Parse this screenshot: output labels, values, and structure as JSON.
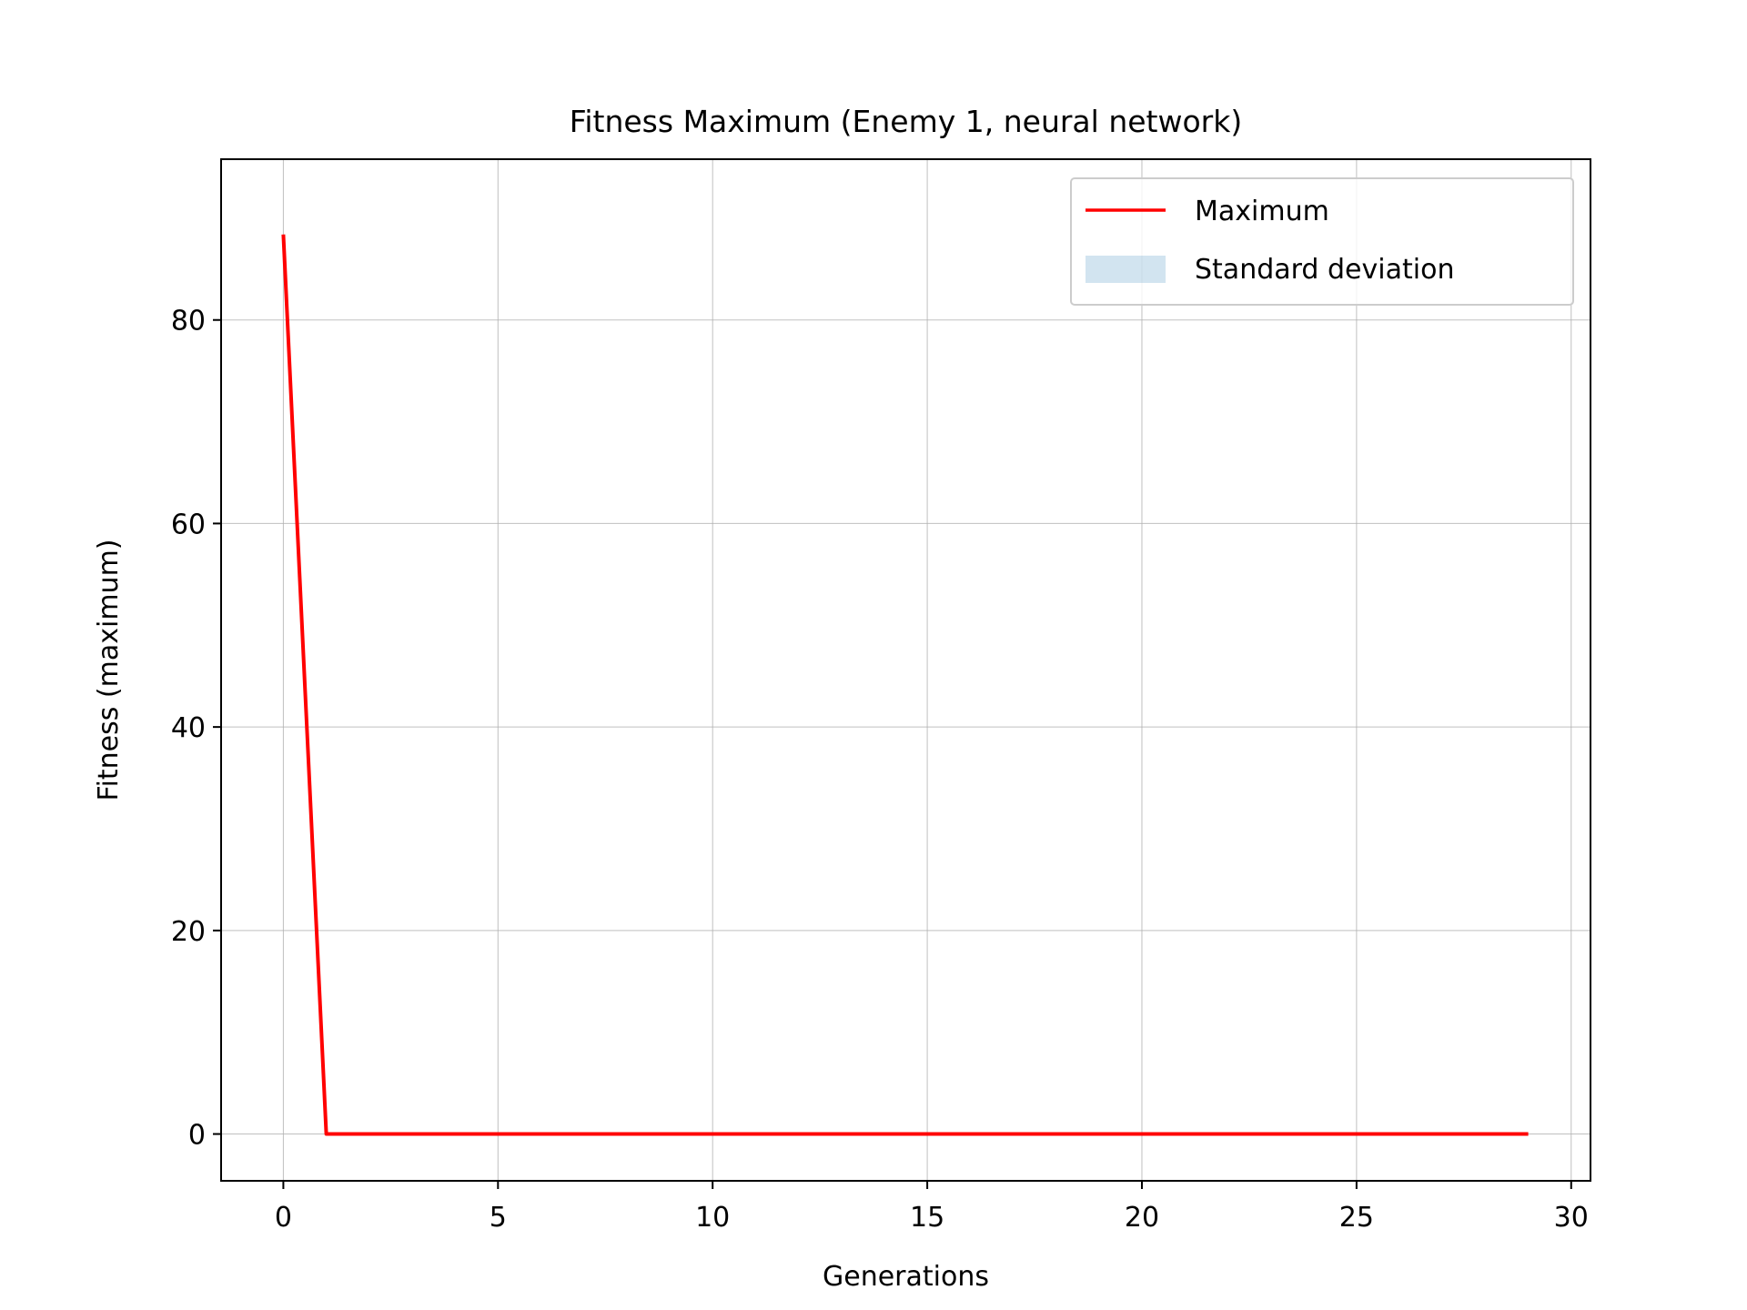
{
  "chart_data": {
    "type": "line",
    "title": "Fitness Maximum (Enemy 1, neural network)",
    "xlabel": "Generations",
    "ylabel": "Fitness (maximum)",
    "xlim": [
      -1.45,
      30.45
    ],
    "ylim": [
      -4.6,
      95.8
    ],
    "xticks": [
      0,
      5,
      10,
      15,
      20,
      25,
      30
    ],
    "yticks": [
      0,
      20,
      40,
      60,
      80
    ],
    "grid": true,
    "legend_position": "top-right",
    "series": [
      {
        "name": "Maximum",
        "color": "#ff0000",
        "x": [
          0,
          1,
          2,
          3,
          4,
          5,
          6,
          7,
          8,
          9,
          10,
          11,
          12,
          13,
          14,
          15,
          16,
          17,
          18,
          19,
          20,
          21,
          22,
          23,
          24,
          25,
          26,
          27,
          28,
          29
        ],
        "values": [
          88.4,
          0,
          0,
          0,
          0,
          0,
          0,
          0,
          0,
          0,
          0,
          0,
          0,
          0,
          0,
          0,
          0,
          0,
          0,
          0,
          0,
          0,
          0,
          0,
          0,
          0,
          0,
          0,
          0,
          0
        ]
      }
    ],
    "band": {
      "name": "Standard deviation",
      "color": "#1f77b4",
      "opacity": 0.2,
      "x": [
        0,
        1,
        2,
        3,
        4,
        5,
        6,
        7,
        8,
        9,
        10,
        11,
        12,
        13,
        14,
        15,
        16,
        17,
        18,
        19,
        20,
        21,
        22,
        23,
        24,
        25,
        26,
        27,
        28,
        29
      ],
      "lower": [
        88.4,
        0,
        0,
        0,
        0,
        0,
        0,
        0,
        0,
        0,
        0,
        0,
        0,
        0,
        0,
        0,
        0,
        0,
        0,
        0,
        0,
        0,
        0,
        0,
        0,
        0,
        0,
        0,
        0,
        0
      ],
      "upper": [
        88.4,
        0,
        0,
        0,
        0,
        0,
        0,
        0,
        0,
        0,
        0,
        0,
        0,
        0,
        0,
        0,
        0,
        0,
        0,
        0,
        0,
        0,
        0,
        0,
        0,
        0,
        0,
        0,
        0,
        0
      ]
    }
  }
}
